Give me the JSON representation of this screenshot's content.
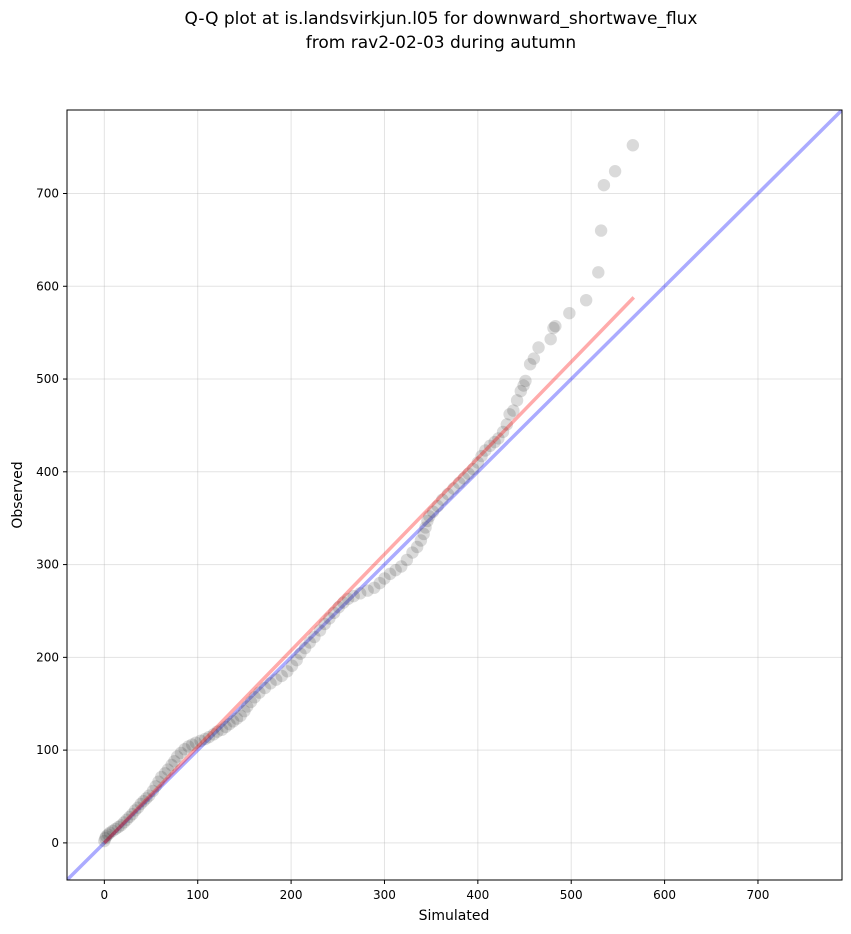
{
  "chart_data": {
    "type": "scatter",
    "title": [
      "Q-Q plot at is.landsvirkjun.l05 for downward_shortwave_flux",
      "from rav2-02-03 during autumn"
    ],
    "xlabel": "Simulated",
    "ylabel": "Observed",
    "xlim": [
      -40,
      790
    ],
    "ylim": [
      -40,
      790
    ],
    "xticks": [
      0,
      100,
      200,
      300,
      400,
      500,
      600,
      700
    ],
    "yticks": [
      0,
      100,
      200,
      300,
      400,
      500,
      600,
      700
    ],
    "grid": true,
    "identity_line_color": "#0000ff",
    "fit_line_color": "#ff0000",
    "point_color": "#333333",
    "fit_line": [
      [
        0,
        0
      ],
      [
        567,
        588
      ]
    ],
    "points": [
      [
        0,
        2
      ],
      [
        1,
        5
      ],
      [
        2,
        7
      ],
      [
        4,
        9
      ],
      [
        6,
        11
      ],
      [
        9,
        13
      ],
      [
        12,
        15
      ],
      [
        15,
        17
      ],
      [
        18,
        19
      ],
      [
        21,
        22
      ],
      [
        24,
        25
      ],
      [
        27,
        28
      ],
      [
        30,
        31
      ],
      [
        33,
        35
      ],
      [
        36,
        38
      ],
      [
        39,
        42
      ],
      [
        42,
        45
      ],
      [
        45,
        48
      ],
      [
        48,
        51
      ],
      [
        52,
        56
      ],
      [
        55,
        61
      ],
      [
        58,
        66
      ],
      [
        61,
        71
      ],
      [
        65,
        75
      ],
      [
        68,
        79
      ],
      [
        72,
        84
      ],
      [
        75,
        88
      ],
      [
        78,
        93
      ],
      [
        82,
        97
      ],
      [
        86,
        101
      ],
      [
        90,
        104
      ],
      [
        94,
        106
      ],
      [
        98,
        108
      ],
      [
        103,
        110
      ],
      [
        108,
        112
      ],
      [
        112,
        114
      ],
      [
        117,
        117
      ],
      [
        121,
        120
      ],
      [
        126,
        122
      ],
      [
        130,
        125
      ],
      [
        134,
        128
      ],
      [
        138,
        131
      ],
      [
        142,
        134
      ],
      [
        146,
        137
      ],
      [
        150,
        142
      ],
      [
        153,
        147
      ],
      [
        157,
        152
      ],
      [
        161,
        157
      ],
      [
        166,
        162
      ],
      [
        172,
        167
      ],
      [
        178,
        172
      ],
      [
        184,
        176
      ],
      [
        190,
        180
      ],
      [
        196,
        185
      ],
      [
        201,
        191
      ],
      [
        206,
        197
      ],
      [
        210,
        204
      ],
      [
        215,
        210
      ],
      [
        220,
        216
      ],
      [
        225,
        222
      ],
      [
        231,
        229
      ],
      [
        236,
        236
      ],
      [
        241,
        242
      ],
      [
        246,
        248
      ],
      [
        251,
        254
      ],
      [
        256,
        259
      ],
      [
        261,
        263
      ],
      [
        267,
        266
      ],
      [
        274,
        269
      ],
      [
        282,
        272
      ],
      [
        289,
        275
      ],
      [
        295,
        280
      ],
      [
        300,
        285
      ],
      [
        306,
        290
      ],
      [
        312,
        294
      ],
      [
        318,
        298
      ],
      [
        324,
        305
      ],
      [
        330,
        313
      ],
      [
        335,
        319
      ],
      [
        339,
        326
      ],
      [
        342,
        333
      ],
      [
        344,
        340
      ],
      [
        346,
        347
      ],
      [
        348,
        352
      ],
      [
        352,
        357
      ],
      [
        357,
        363
      ],
      [
        362,
        370
      ],
      [
        368,
        376
      ],
      [
        374,
        382
      ],
      [
        380,
        388
      ],
      [
        385,
        393
      ],
      [
        390,
        398
      ],
      [
        395,
        403
      ],
      [
        400,
        410
      ],
      [
        404,
        417
      ],
      [
        408,
        423
      ],
      [
        413,
        428
      ],
      [
        418,
        432
      ],
      [
        422,
        436
      ],
      [
        427,
        443
      ],
      [
        431,
        451
      ],
      [
        434,
        462
      ],
      [
        438,
        466
      ],
      [
        442,
        477
      ],
      [
        446,
        487
      ],
      [
        449,
        493
      ],
      [
        451,
        498
      ],
      [
        456,
        516
      ],
      [
        460,
        522
      ],
      [
        465,
        534
      ],
      [
        478,
        543
      ],
      [
        481,
        555
      ],
      [
        483,
        557
      ],
      [
        498,
        571
      ],
      [
        516,
        585
      ],
      [
        529,
        615
      ],
      [
        532,
        660
      ],
      [
        535,
        709
      ],
      [
        547,
        724
      ],
      [
        566,
        752
      ]
    ]
  }
}
